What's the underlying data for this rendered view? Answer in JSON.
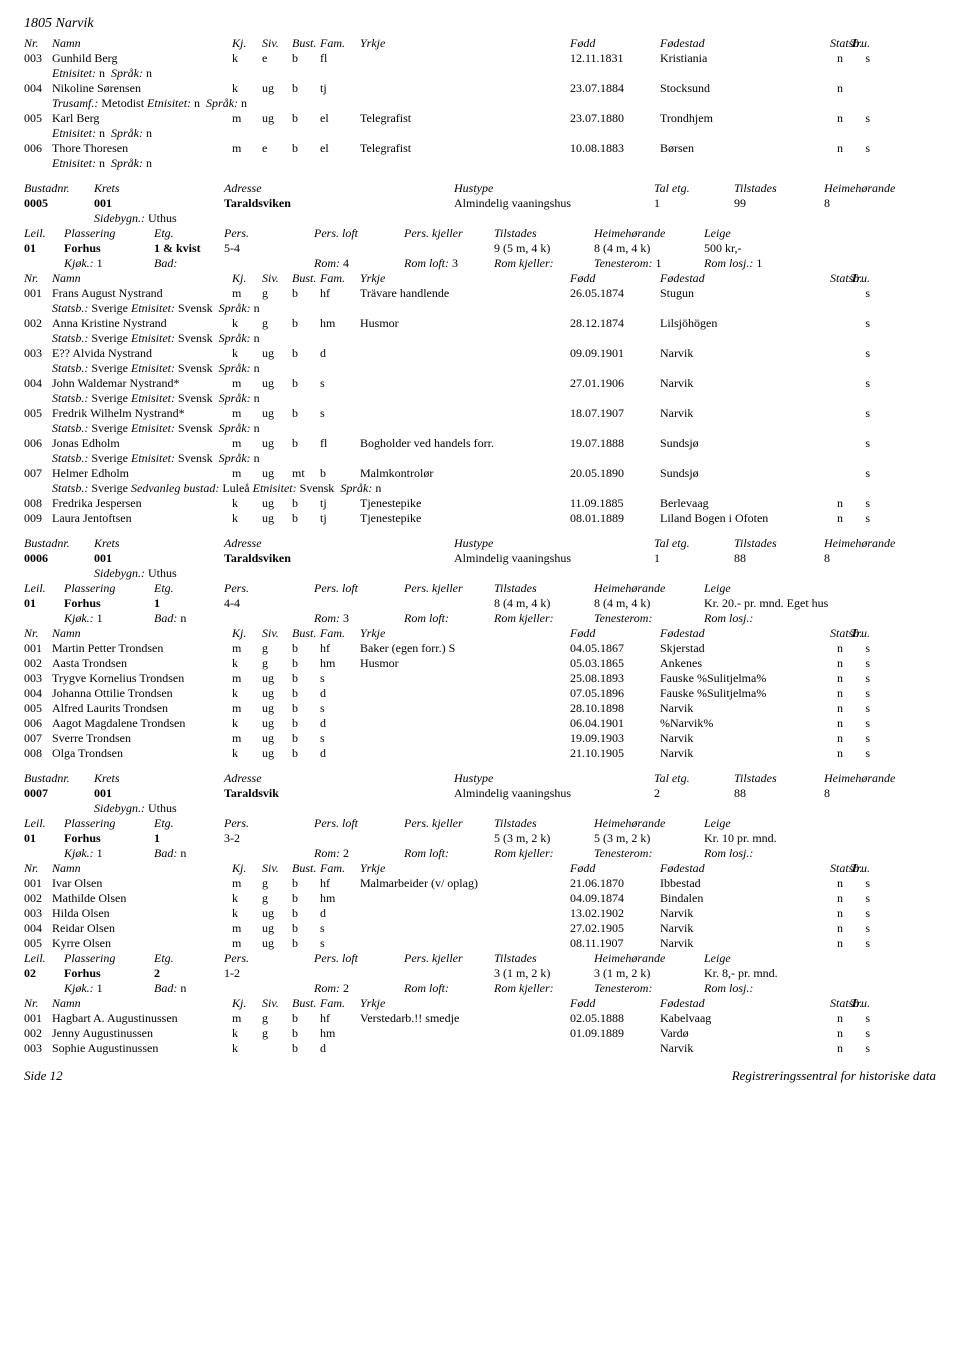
{
  "pageTitle": "1805 Narvik",
  "footerLeft": "Side 12",
  "footerRight": "Registreringssentral for historiske data",
  "personHeader": {
    "nr": "Nr.",
    "namn": "Namn",
    "kj": "Kj.",
    "siv": "Siv.",
    "bust": "Bust.",
    "fam": "Fam.",
    "yrkje": "Yrkje",
    "fodd": "Fødd",
    "fodestad": "Fødestad",
    "statsb": "Statsb.",
    "tru": "Tru."
  },
  "bustadHeader": {
    "bustadnr": "Bustadnr.",
    "krets": "Krets",
    "adresse": "Adresse",
    "hustype": "Hustype",
    "taletg": "Tal etg.",
    "tilstades": "Tilstades",
    "heime": "Heimehørande"
  },
  "leilHeader": {
    "leil": "Leil.",
    "plassering": "Plassering",
    "etg": "Etg.",
    "pers": "Pers.",
    "persloft": "Pers. loft",
    "perskjeller": "Pers. kjeller",
    "tilstades": "Tilstades",
    "heime": "Heimehørande",
    "leige": "Leige"
  },
  "kjokHeader": {
    "kjok": "Kjøk.:",
    "bad": "Bad:",
    "rom": "Rom:",
    "romloft": "Rom loft:",
    "romkjeller": "Rom kjeller:",
    "tenesterom": "Tenesterom:",
    "romlosj": "Rom losj.:"
  },
  "sidebygn": "Sidebygn.:",
  "trusamf": "Trusamf.:",
  "etnisitet": "Etnisitet:",
  "sprak": "Språk:",
  "statsbLbl": "Statsb.:",
  "sedvanleg": "Sedvanleg bustad:",
  "topPersons": [
    {
      "nr": "003",
      "namn": "Gunhild Berg",
      "kj": "k",
      "siv": "e",
      "bust": "b",
      "fam": "fl",
      "yrkje": "",
      "fodd": "12.11.1831",
      "fodestad": "Kristiania",
      "statsb": "n",
      "tru": "s",
      "extra": [
        {
          "type": "etn",
          "etn": "n",
          "spr": "n"
        }
      ]
    },
    {
      "nr": "004",
      "namn": "Nikoline Sørensen",
      "kj": "k",
      "siv": "ug",
      "bust": "b",
      "fam": "tj",
      "yrkje": "",
      "fodd": "23.07.1884",
      "fodestad": "Stocksund",
      "statsb": "n",
      "tru": "",
      "extra": [
        {
          "type": "trus",
          "trus": "Metodist",
          "etn": "n",
          "spr": "n"
        }
      ]
    },
    {
      "nr": "005",
      "namn": "Karl Berg",
      "kj": "m",
      "siv": "ug",
      "bust": "b",
      "fam": "el",
      "yrkje": "Telegrafist",
      "fodd": "23.07.1880",
      "fodestad": "Trondhjem",
      "statsb": "n",
      "tru": "s",
      "extra": [
        {
          "type": "etn",
          "etn": "n",
          "spr": "n"
        }
      ]
    },
    {
      "nr": "006",
      "namn": "Thore Thoresen",
      "kj": "m",
      "siv": "e",
      "bust": "b",
      "fam": "el",
      "yrkje": "Telegrafist",
      "fodd": "10.08.1883",
      "fodestad": "Børsen",
      "statsb": "n",
      "tru": "s",
      "extra": [
        {
          "type": "etn",
          "etn": "n",
          "spr": "n"
        }
      ]
    }
  ],
  "bustads": [
    {
      "nr": "0005",
      "krets": "001",
      "adresse": "Taraldsviken",
      "hustype": "Almindelig vaaningshus",
      "taletg": "1",
      "tilstades": "99",
      "heime": "8",
      "sidebygn": "Uthus",
      "leils": [
        {
          "leil": "01",
          "plassering": "Forhus",
          "etg": "1 & kvist",
          "pers": "5-4",
          "persloft": "",
          "perskjeller": "",
          "tilstades": "9 (5 m, 4 k)",
          "heime": "8 (4 m, 4 k)",
          "leige": "500 kr,-",
          "kjok": "1",
          "bad": "",
          "rom": "4",
          "romloft": "3",
          "romkjeller": "",
          "tenesterom": "1",
          "romlosj": "1"
        }
      ],
      "persons": [
        {
          "nr": "001",
          "namn": "Frans August Nystrand",
          "kj": "m",
          "siv": "g",
          "bust": "b",
          "fam": "hf",
          "yrkje": "Trävare handlende",
          "fodd": "26.05.1874",
          "fodestad": "Stugun",
          "statsb": "",
          "tru": "s",
          "extra": [
            {
              "type": "stat",
              "stat": "Sverige",
              "etn": "Svensk",
              "spr": "n"
            }
          ]
        },
        {
          "nr": "002",
          "namn": "Anna Kristine Nystrand",
          "kj": "k",
          "siv": "g",
          "bust": "b",
          "fam": "hm",
          "yrkje": "Husmor",
          "fodd": "28.12.1874",
          "fodestad": "Lilsjöhögen",
          "statsb": "",
          "tru": "s",
          "extra": [
            {
              "type": "stat",
              "stat": "Sverige",
              "etn": "Svensk",
              "spr": "n"
            }
          ]
        },
        {
          "nr": "003",
          "namn": "E?? Alvida Nystrand",
          "kj": "k",
          "siv": "ug",
          "bust": "b",
          "fam": "d",
          "yrkje": "",
          "fodd": "09.09.1901",
          "fodestad": "Narvik",
          "statsb": "",
          "tru": "s",
          "extra": [
            {
              "type": "stat",
              "stat": "Sverige",
              "etn": "Svensk",
              "spr": "n"
            }
          ]
        },
        {
          "nr": "004",
          "namn": "John Waldemar Nystrand*",
          "kj": "m",
          "siv": "ug",
          "bust": "b",
          "fam": "s",
          "yrkje": "",
          "fodd": "27.01.1906",
          "fodestad": "Narvik",
          "statsb": "",
          "tru": "s",
          "extra": [
            {
              "type": "stat",
              "stat": "Sverige",
              "etn": "Svensk",
              "spr": "n"
            }
          ]
        },
        {
          "nr": "005",
          "namn": "Fredrik Wilhelm Nystrand*",
          "kj": "m",
          "siv": "ug",
          "bust": "b",
          "fam": "s",
          "yrkje": "",
          "fodd": "18.07.1907",
          "fodestad": "Narvik",
          "statsb": "",
          "tru": "s",
          "extra": [
            {
              "type": "stat",
              "stat": "Sverige",
              "etn": "Svensk",
              "spr": "n"
            }
          ]
        },
        {
          "nr": "006",
          "namn": "Jonas Edholm",
          "kj": "m",
          "siv": "ug",
          "bust": "b",
          "fam": "fl",
          "yrkje": "Bogholder ved handels forr.",
          "fodd": "19.07.1888",
          "fodestad": "Sundsjø",
          "statsb": "",
          "tru": "s",
          "extra": [
            {
              "type": "stat",
              "stat": "Sverige",
              "etn": "Svensk",
              "spr": "n"
            }
          ]
        },
        {
          "nr": "007",
          "namn": "Helmer Edholm",
          "kj": "m",
          "siv": "ug",
          "bust": "mt",
          "fam": "b",
          "yrkje": "Malmkontrolør",
          "fodd": "20.05.1890",
          "fodestad": "Sundsjø",
          "statsb": "",
          "tru": "s",
          "extra": [
            {
              "type": "statsed",
              "stat": "Sverige",
              "sed": "Luleå",
              "etn": "Svensk",
              "spr": "n"
            }
          ]
        },
        {
          "nr": "008",
          "namn": "Fredrika Jespersen",
          "kj": "k",
          "siv": "ug",
          "bust": "b",
          "fam": "tj",
          "yrkje": "Tjenestepike",
          "fodd": "11.09.1885",
          "fodestad": "Berlevaag",
          "statsb": "n",
          "tru": "s",
          "extra": []
        },
        {
          "nr": "009",
          "namn": "Laura Jentoftsen",
          "kj": "k",
          "siv": "ug",
          "bust": "b",
          "fam": "tj",
          "yrkje": "Tjenestepike",
          "fodd": "08.01.1889",
          "fodestad": "Liland Bogen i Ofoten",
          "statsb": "n",
          "tru": "s",
          "extra": []
        }
      ]
    },
    {
      "nr": "0006",
      "krets": "001",
      "adresse": "Taraldsviken",
      "hustype": "Almindelig vaaningshus",
      "taletg": "1",
      "tilstades": "88",
      "heime": "8",
      "sidebygn": "Uthus",
      "leils": [
        {
          "leil": "01",
          "plassering": "Forhus",
          "etg": "1",
          "pers": "4-4",
          "persloft": "",
          "perskjeller": "",
          "tilstades": "8 (4 m, 4 k)",
          "heime": "8 (4 m, 4 k)",
          "leige": "Kr. 20.- pr. mnd. Eget hus",
          "kjok": "1",
          "bad": "n",
          "rom": "3",
          "romloft": "",
          "romkjeller": "",
          "tenesterom": "",
          "romlosj": ""
        }
      ],
      "persons": [
        {
          "nr": "001",
          "namn": "Martin Petter Trondsen",
          "kj": "m",
          "siv": "g",
          "bust": "b",
          "fam": "hf",
          "yrkje": "Baker (egen forr.) S",
          "fodd": "04.05.1867",
          "fodestad": "Skjerstad",
          "statsb": "n",
          "tru": "s",
          "extra": []
        },
        {
          "nr": "002",
          "namn": "Aasta Trondsen",
          "kj": "k",
          "siv": "g",
          "bust": "b",
          "fam": "hm",
          "yrkje": "Husmor",
          "fodd": "05.03.1865",
          "fodestad": "Ankenes",
          "statsb": "n",
          "tru": "s",
          "extra": []
        },
        {
          "nr": "003",
          "namn": "Trygve Kornelius Trondsen",
          "kj": "m",
          "siv": "ug",
          "bust": "b",
          "fam": "s",
          "yrkje": "",
          "fodd": "25.08.1893",
          "fodestad": "Fauske %Sulitjelma%",
          "statsb": "n",
          "tru": "s",
          "extra": []
        },
        {
          "nr": "004",
          "namn": "Johanna Ottilie Trondsen",
          "kj": "k",
          "siv": "ug",
          "bust": "b",
          "fam": "d",
          "yrkje": "",
          "fodd": "07.05.1896",
          "fodestad": "Fauske %Sulitjelma%",
          "statsb": "n",
          "tru": "s",
          "extra": []
        },
        {
          "nr": "005",
          "namn": "Alfred Laurits Trondsen",
          "kj": "m",
          "siv": "ug",
          "bust": "b",
          "fam": "s",
          "yrkje": "",
          "fodd": "28.10.1898",
          "fodestad": "Narvik",
          "statsb": "n",
          "tru": "s",
          "extra": []
        },
        {
          "nr": "006",
          "namn": "Aagot Magdalene Trondsen",
          "kj": "k",
          "siv": "ug",
          "bust": "b",
          "fam": "d",
          "yrkje": "",
          "fodd": "06.04.1901",
          "fodestad": "%Narvik%",
          "statsb": "n",
          "tru": "s",
          "extra": []
        },
        {
          "nr": "007",
          "namn": "Sverre Trondsen",
          "kj": "m",
          "siv": "ug",
          "bust": "b",
          "fam": "s",
          "yrkje": "",
          "fodd": "19.09.1903",
          "fodestad": "Narvik",
          "statsb": "n",
          "tru": "s",
          "extra": []
        },
        {
          "nr": "008",
          "namn": "Olga Trondsen",
          "kj": "k",
          "siv": "ug",
          "bust": "b",
          "fam": "d",
          "yrkje": "",
          "fodd": "21.10.1905",
          "fodestad": "Narvik",
          "statsb": "n",
          "tru": "s",
          "extra": []
        }
      ]
    },
    {
      "nr": "0007",
      "krets": "001",
      "adresse": "Taraldsvik",
      "hustype": "Almindelig vaaningshus",
      "taletg": "2",
      "tilstades": "88",
      "heime": "8",
      "sidebygn": "Uthus",
      "leils": [
        {
          "leil": "01",
          "plassering": "Forhus",
          "etg": "1",
          "pers": "3-2",
          "persloft": "",
          "perskjeller": "",
          "tilstades": "5 (3 m, 2 k)",
          "heime": "5 (3 m, 2 k)",
          "leige": "Kr. 10 pr. mnd.",
          "kjok": "1",
          "bad": "n",
          "rom": "2",
          "romloft": "",
          "romkjeller": "",
          "tenesterom": "",
          "romlosj": ""
        }
      ],
      "persons": [
        {
          "nr": "001",
          "namn": "Ivar Olsen",
          "kj": "m",
          "siv": "g",
          "bust": "b",
          "fam": "hf",
          "yrkje": "Malmarbeider (v/ oplag)",
          "fodd": "21.06.1870",
          "fodestad": "Ibbestad",
          "statsb": "n",
          "tru": "s",
          "extra": []
        },
        {
          "nr": "002",
          "namn": "Mathilde Olsen",
          "kj": "k",
          "siv": "g",
          "bust": "b",
          "fam": "hm",
          "yrkje": "",
          "fodd": "04.09.1874",
          "fodestad": "Bindalen",
          "statsb": "n",
          "tru": "s",
          "extra": []
        },
        {
          "nr": "003",
          "namn": "Hilda Olsen",
          "kj": "k",
          "siv": "ug",
          "bust": "b",
          "fam": "d",
          "yrkje": "",
          "fodd": "13.02.1902",
          "fodestad": "Narvik",
          "statsb": "n",
          "tru": "s",
          "extra": []
        },
        {
          "nr": "004",
          "namn": "Reidar Olsen",
          "kj": "m",
          "siv": "ug",
          "bust": "b",
          "fam": "s",
          "yrkje": "",
          "fodd": "27.02.1905",
          "fodestad": "Narvik",
          "statsb": "n",
          "tru": "s",
          "extra": []
        },
        {
          "nr": "005",
          "namn": "Kyrre Olsen",
          "kj": "m",
          "siv": "ug",
          "bust": "b",
          "fam": "s",
          "yrkje": "",
          "fodd": "08.11.1907",
          "fodestad": "Narvik",
          "statsb": "n",
          "tru": "s",
          "extra": []
        }
      ],
      "leils2": [
        {
          "leil": "02",
          "plassering": "Forhus",
          "etg": "2",
          "pers": "1-2",
          "persloft": "",
          "perskjeller": "",
          "tilstades": "3 (1 m, 2 k)",
          "heime": "3 (1 m, 2 k)",
          "leige": "Kr. 8,- pr. mnd.",
          "kjok": "1",
          "bad": "n",
          "rom": "2",
          "romloft": "",
          "romkjeller": "",
          "tenesterom": "",
          "romlosj": ""
        }
      ],
      "persons2": [
        {
          "nr": "001",
          "namn": "Hagbart A. Augustinussen",
          "kj": "m",
          "siv": "g",
          "bust": "b",
          "fam": "hf",
          "yrkje": "Verstedarb.!! smedje",
          "fodd": "02.05.1888",
          "fodestad": "Kabelvaag",
          "statsb": "n",
          "tru": "s",
          "extra": []
        },
        {
          "nr": "002",
          "namn": "Jenny Augustinussen",
          "kj": "k",
          "siv": "g",
          "bust": "b",
          "fam": "hm",
          "yrkje": "",
          "fodd": "01.09.1889",
          "fodestad": "Vardø",
          "statsb": "n",
          "tru": "s",
          "extra": []
        },
        {
          "nr": "003",
          "namn": "Sophie Augustinussen",
          "kj": "k",
          "siv": "",
          "bust": "b",
          "fam": "d",
          "yrkje": "",
          "fodd": "",
          "fodestad": "Narvik",
          "statsb": "n",
          "tru": "s",
          "extra": []
        }
      ]
    }
  ]
}
